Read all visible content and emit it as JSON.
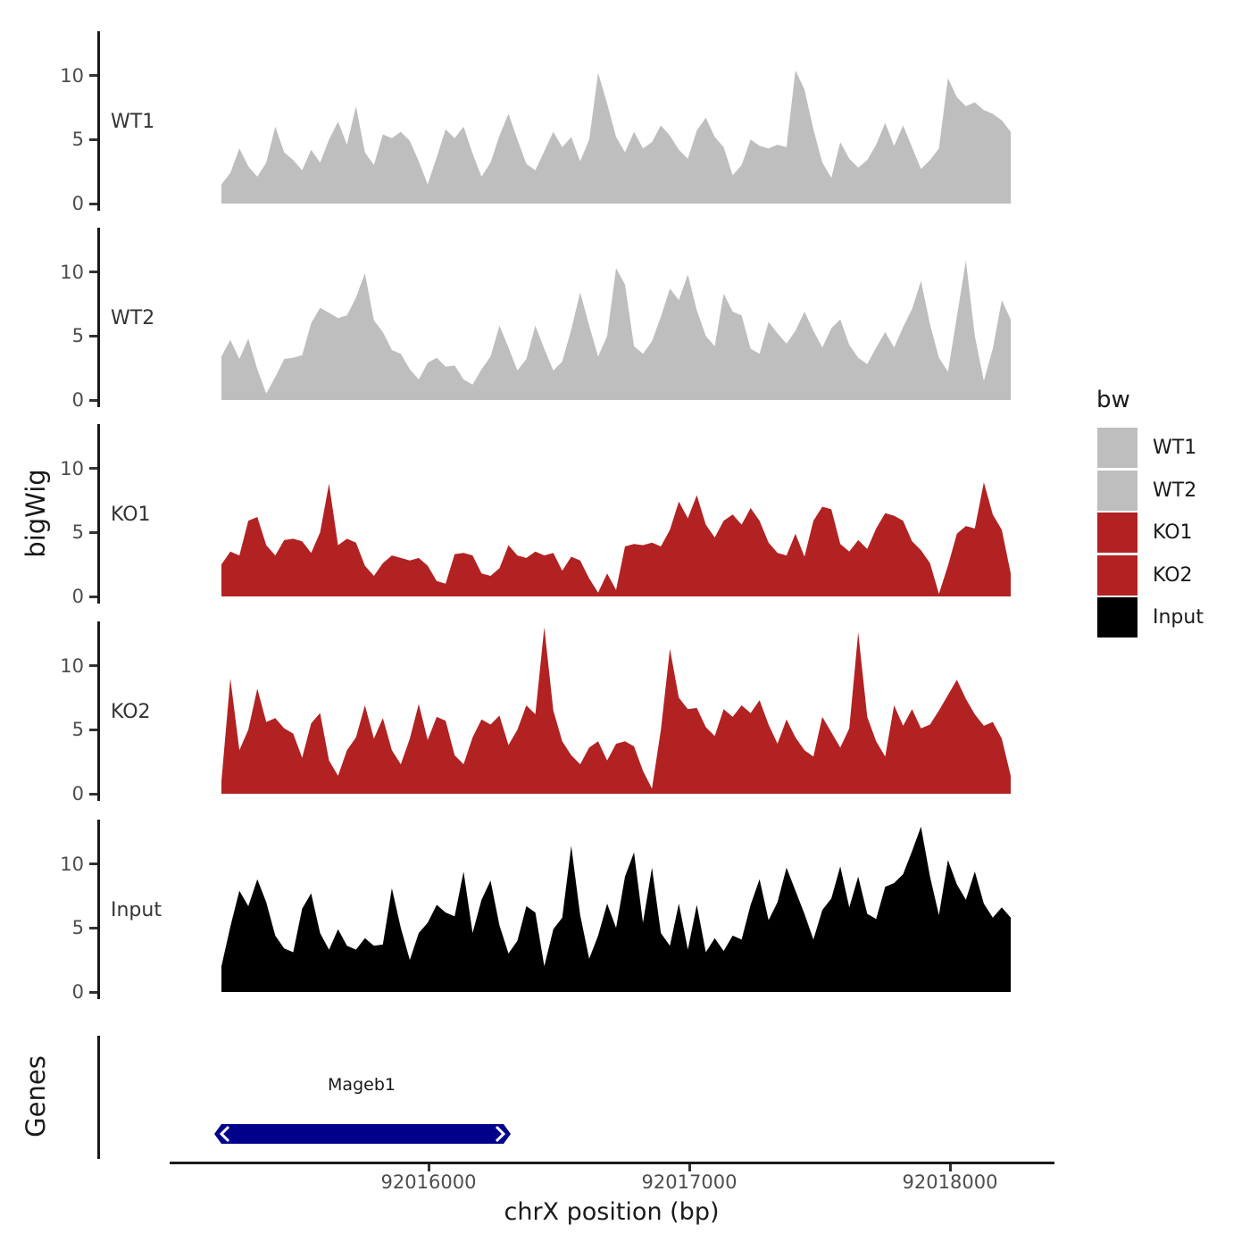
{
  "figure": {
    "y_axis_label": "bigWig",
    "genes_axis_label": "Genes",
    "x_axis_label": "chrX position (bp)",
    "y_tick_labels": [
      "0",
      "5",
      "10"
    ]
  },
  "legend": {
    "title": "bw",
    "entries": [
      {
        "label": "WT1",
        "color": "#BEBEBE"
      },
      {
        "label": "WT2",
        "color": "#BEBEBE"
      },
      {
        "label": "KO1",
        "color": "#B22222"
      },
      {
        "label": "KO2",
        "color": "#B22222"
      },
      {
        "label": "Input",
        "color": "#000000"
      }
    ]
  },
  "gene_track": {
    "gene_label": "Mageb1",
    "gene_color": "#00008B"
  },
  "chart_data": {
    "type": "area",
    "title": "",
    "xlabel": "chrX position (bp)",
    "ylabel": "bigWig",
    "x_range_bp": [
      92015210,
      92018240
    ],
    "x_ticks": [
      {
        "value": 92016000,
        "label": "92016000"
      },
      {
        "value": 92017000,
        "label": "92017000"
      },
      {
        "value": 92018000,
        "label": "92018000"
      }
    ],
    "y_ticks": [
      0,
      5,
      10
    ],
    "ylim_per_track": [
      0,
      13.5
    ],
    "legend_position": "right",
    "grid": false,
    "tracks": [
      {
        "name": "WT1",
        "color": "#BEBEBE",
        "values": [
          1.5,
          2.4,
          4.3,
          2.9,
          2.1,
          3.2,
          6.0,
          4.0,
          3.4,
          2.6,
          4.2,
          3.2,
          5.0,
          6.4,
          4.6,
          7.6,
          4.0,
          3.0,
          5.4,
          5.1,
          5.6,
          4.9,
          3.3,
          1.5,
          3.6,
          5.8,
          5.1,
          6.0,
          3.9,
          2.1,
          3.2,
          5.3,
          7.0,
          5.0,
          3.1,
          2.6,
          4.1,
          5.6,
          4.4,
          5.2,
          3.3,
          5.0,
          10.2,
          7.8,
          5.2,
          4.0,
          5.6,
          4.3,
          4.8,
          6.1,
          5.3,
          4.2,
          3.5,
          5.7,
          6.7,
          5.2,
          4.4,
          2.2,
          3.0,
          5.0,
          4.5,
          4.3,
          4.6,
          4.4,
          10.4,
          8.9,
          5.8,
          3.2,
          2.0,
          4.8,
          3.5,
          2.8,
          3.4,
          4.6,
          6.3,
          4.5,
          6.1,
          4.4,
          2.7,
          3.4,
          4.3,
          9.8,
          8.3,
          7.6,
          7.9,
          7.3,
          7.0,
          6.5,
          5.6
        ]
      },
      {
        "name": "WT2",
        "color": "#BEBEBE",
        "values": [
          3.4,
          4.7,
          3.2,
          4.8,
          2.4,
          0.5,
          1.8,
          3.2,
          3.3,
          3.5,
          6.0,
          7.2,
          6.8,
          6.4,
          6.6,
          8.0,
          9.9,
          6.2,
          5.3,
          3.9,
          3.6,
          2.4,
          1.6,
          2.9,
          3.3,
          2.6,
          2.7,
          1.6,
          1.2,
          2.4,
          3.4,
          5.8,
          4.1,
          2.3,
          3.2,
          5.8,
          4.0,
          2.3,
          3.0,
          5.5,
          8.4,
          5.8,
          3.4,
          5.0,
          10.3,
          9.0,
          4.2,
          3.6,
          4.6,
          6.5,
          8.7,
          7.8,
          9.8,
          7.0,
          5.0,
          4.2,
          8.3,
          6.9,
          6.6,
          4.0,
          3.6,
          6.1,
          5.2,
          4.4,
          5.4,
          6.9,
          5.4,
          4.1,
          5.6,
          6.3,
          4.3,
          3.3,
          2.8,
          4.1,
          5.3,
          4.1,
          5.7,
          7.1,
          9.3,
          5.9,
          3.3,
          2.2,
          6.5,
          10.9,
          5.0,
          1.5,
          4.0,
          7.8,
          6.3
        ]
      },
      {
        "name": "KO1",
        "color": "#B22222",
        "values": [
          2.5,
          3.5,
          3.2,
          5.9,
          6.2,
          4.0,
          3.2,
          4.4,
          4.5,
          4.3,
          3.4,
          5.0,
          8.8,
          4.0,
          4.5,
          4.2,
          2.4,
          1.6,
          2.6,
          3.2,
          3.0,
          2.8,
          3.0,
          2.4,
          1.2,
          1.0,
          3.3,
          3.4,
          3.2,
          1.8,
          1.6,
          2.2,
          4.0,
          3.2,
          3.0,
          3.5,
          3.2,
          3.4,
          2.0,
          3.1,
          2.8,
          1.4,
          0.3,
          1.8,
          0.5,
          3.9,
          4.1,
          4.0,
          4.2,
          3.9,
          5.2,
          7.4,
          6.1,
          7.9,
          5.6,
          4.6,
          5.9,
          6.4,
          5.6,
          6.9,
          5.9,
          4.2,
          3.4,
          3.2,
          4.9,
          3.1,
          5.9,
          7.0,
          6.8,
          4.1,
          3.5,
          4.4,
          3.7,
          5.3,
          6.5,
          6.3,
          5.9,
          4.3,
          3.6,
          2.6,
          0.2,
          2.4,
          4.9,
          5.5,
          5.3,
          8.9,
          6.4,
          5.2,
          1.8
        ]
      },
      {
        "name": "KO2",
        "color": "#B22222",
        "values": [
          1.0,
          9.0,
          3.4,
          5.0,
          8.2,
          5.6,
          5.9,
          5.1,
          4.7,
          2.8,
          5.5,
          6.3,
          2.6,
          1.4,
          3.4,
          4.4,
          6.9,
          4.3,
          5.9,
          3.4,
          2.3,
          4.3,
          7.0,
          4.2,
          6.0,
          5.7,
          3.0,
          2.3,
          4.4,
          5.8,
          5.4,
          6.1,
          3.8,
          5.0,
          6.9,
          6.2,
          13.0,
          6.5,
          4.1,
          3.0,
          2.3,
          3.6,
          4.1,
          2.6,
          3.9,
          4.1,
          3.7,
          1.8,
          0.4,
          5.0,
          11.3,
          7.5,
          6.6,
          6.7,
          5.2,
          4.5,
          6.6,
          6.0,
          6.9,
          6.3,
          7.3,
          5.4,
          3.9,
          5.8,
          4.4,
          3.4,
          2.9,
          6.0,
          4.8,
          3.6,
          5.1,
          12.6,
          6.0,
          4.1,
          2.9,
          6.9,
          5.3,
          6.6,
          5.1,
          5.4,
          6.5,
          7.7,
          8.9,
          7.4,
          6.2,
          5.3,
          5.6,
          4.3,
          1.4
        ]
      },
      {
        "name": "Input",
        "color": "#000000",
        "values": [
          2.0,
          5.1,
          7.9,
          6.7,
          8.8,
          7.0,
          4.4,
          3.4,
          3.1,
          6.5,
          7.7,
          4.6,
          3.3,
          4.9,
          3.6,
          3.3,
          4.2,
          3.6,
          3.7,
          8.1,
          5.0,
          2.5,
          4.6,
          5.4,
          6.8,
          6.2,
          5.9,
          9.4,
          4.6,
          7.2,
          8.7,
          5.2,
          3.0,
          4.0,
          6.7,
          6.2,
          2.0,
          4.9,
          5.8,
          11.4,
          6.0,
          2.6,
          4.4,
          6.9,
          5.0,
          9.0,
          10.9,
          5.4,
          9.7,
          4.6,
          3.6,
          6.9,
          3.3,
          6.8,
          3.1,
          4.2,
          3.2,
          4.4,
          4.1,
          6.8,
          8.8,
          5.6,
          7.0,
          9.7,
          7.9,
          6.1,
          4.1,
          6.4,
          7.3,
          9.8,
          6.6,
          9.0,
          6.1,
          5.7,
          8.2,
          8.5,
          9.2,
          11.0,
          12.9,
          9.0,
          6.0,
          10.3,
          8.4,
          7.2,
          9.4,
          6.9,
          5.8,
          6.6,
          5.8
        ]
      }
    ],
    "genes": [
      {
        "name": "Mageb1",
        "start_bp": 92015180,
        "end_bp": 92016310,
        "strand": "-",
        "color": "#00008B"
      }
    ]
  }
}
